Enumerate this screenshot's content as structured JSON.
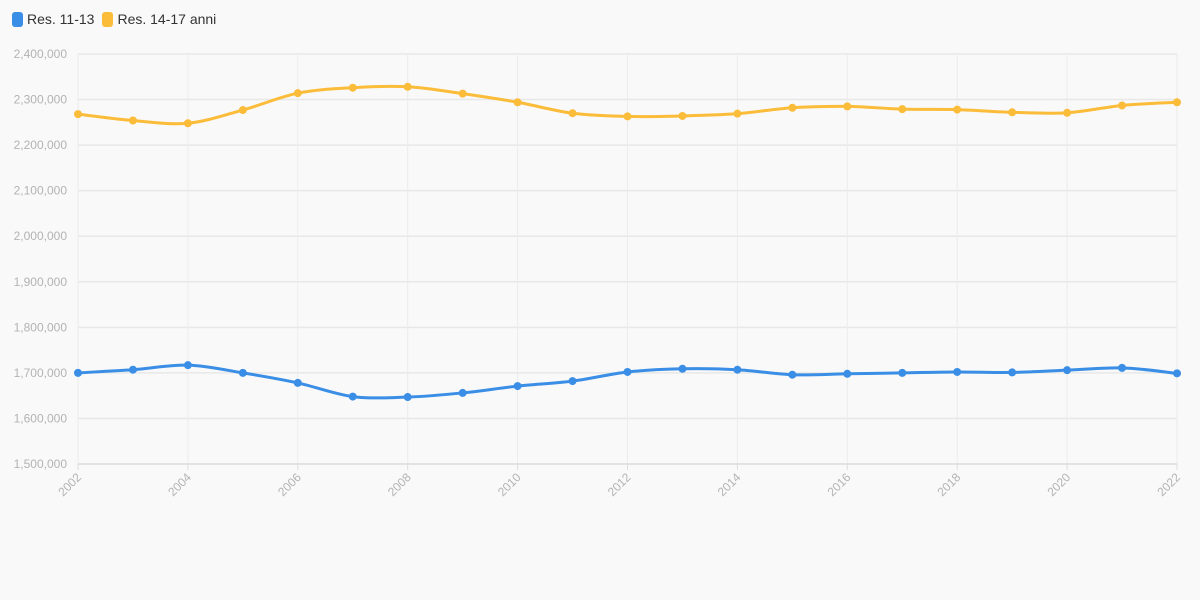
{
  "chart_data": {
    "type": "line",
    "x": [
      "2002",
      "2003",
      "2004",
      "2005",
      "2006",
      "2007",
      "2008",
      "2009",
      "2010",
      "2011",
      "2012",
      "2013",
      "2014",
      "2015",
      "2016",
      "2017",
      "2018",
      "2019",
      "2020",
      "2021",
      "2022"
    ],
    "x_tick_labels": [
      "2002",
      "2004",
      "2006",
      "2008",
      "2010",
      "2012",
      "2014",
      "2016",
      "2018",
      "2020",
      "2022"
    ],
    "y_tick_labels": [
      "1,500,000",
      "1,600,000",
      "1,700,000",
      "1,800,000",
      "1,900,000",
      "2,000,000",
      "2,100,000",
      "2,200,000",
      "2,300,000",
      "2,400,000"
    ],
    "ylim": [
      1500000,
      2400000
    ],
    "grid": true,
    "legend_position": "top-left",
    "series": [
      {
        "name": "Res. 11-13",
        "color": "#3a8ee6",
        "values": [
          1700000,
          1707000,
          1717000,
          1700000,
          1678000,
          1648000,
          1647000,
          1656000,
          1671000,
          1682000,
          1702000,
          1709000,
          1707000,
          1696000,
          1698000,
          1700000,
          1702000,
          1701000,
          1706000,
          1711000,
          1699000
        ]
      },
      {
        "name": "Res. 14-17 anni",
        "color": "#fbbc3a",
        "values": [
          2268000,
          2254000,
          2248000,
          2277000,
          2314000,
          2326000,
          2328000,
          2313000,
          2294000,
          2270000,
          2263000,
          2264000,
          2269000,
          2282000,
          2285000,
          2279000,
          2278000,
          2272000,
          2271000,
          2287000,
          2294000
        ]
      }
    ]
  }
}
